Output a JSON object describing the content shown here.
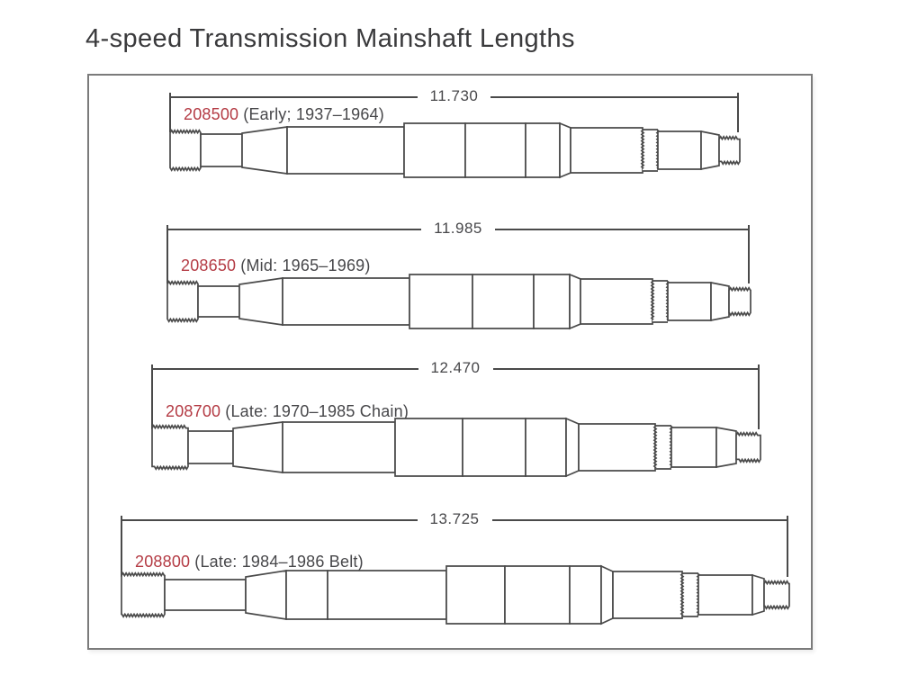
{
  "title": "4-speed Transmission Mainshaft Lengths",
  "colors": {
    "part_number_red": "#b43b44",
    "line_ink": "#4a4a4a",
    "title_ink": "#3a3a3c",
    "label_ink": "#47474a",
    "frame_border": "#7b7b7b"
  },
  "shafts": [
    {
      "part_number": "208500",
      "era": "(Early; 1937–1964)",
      "length": "11.730"
    },
    {
      "part_number": "208650",
      "era": "(Mid: 1965–1969)",
      "length": "11.985"
    },
    {
      "part_number": "208700",
      "era": "(Late: 1970–1985 Chain)",
      "length": "12.470"
    },
    {
      "part_number": "208800",
      "era": "(Late: 1984–1986 Belt)",
      "length": "13.725"
    }
  ]
}
